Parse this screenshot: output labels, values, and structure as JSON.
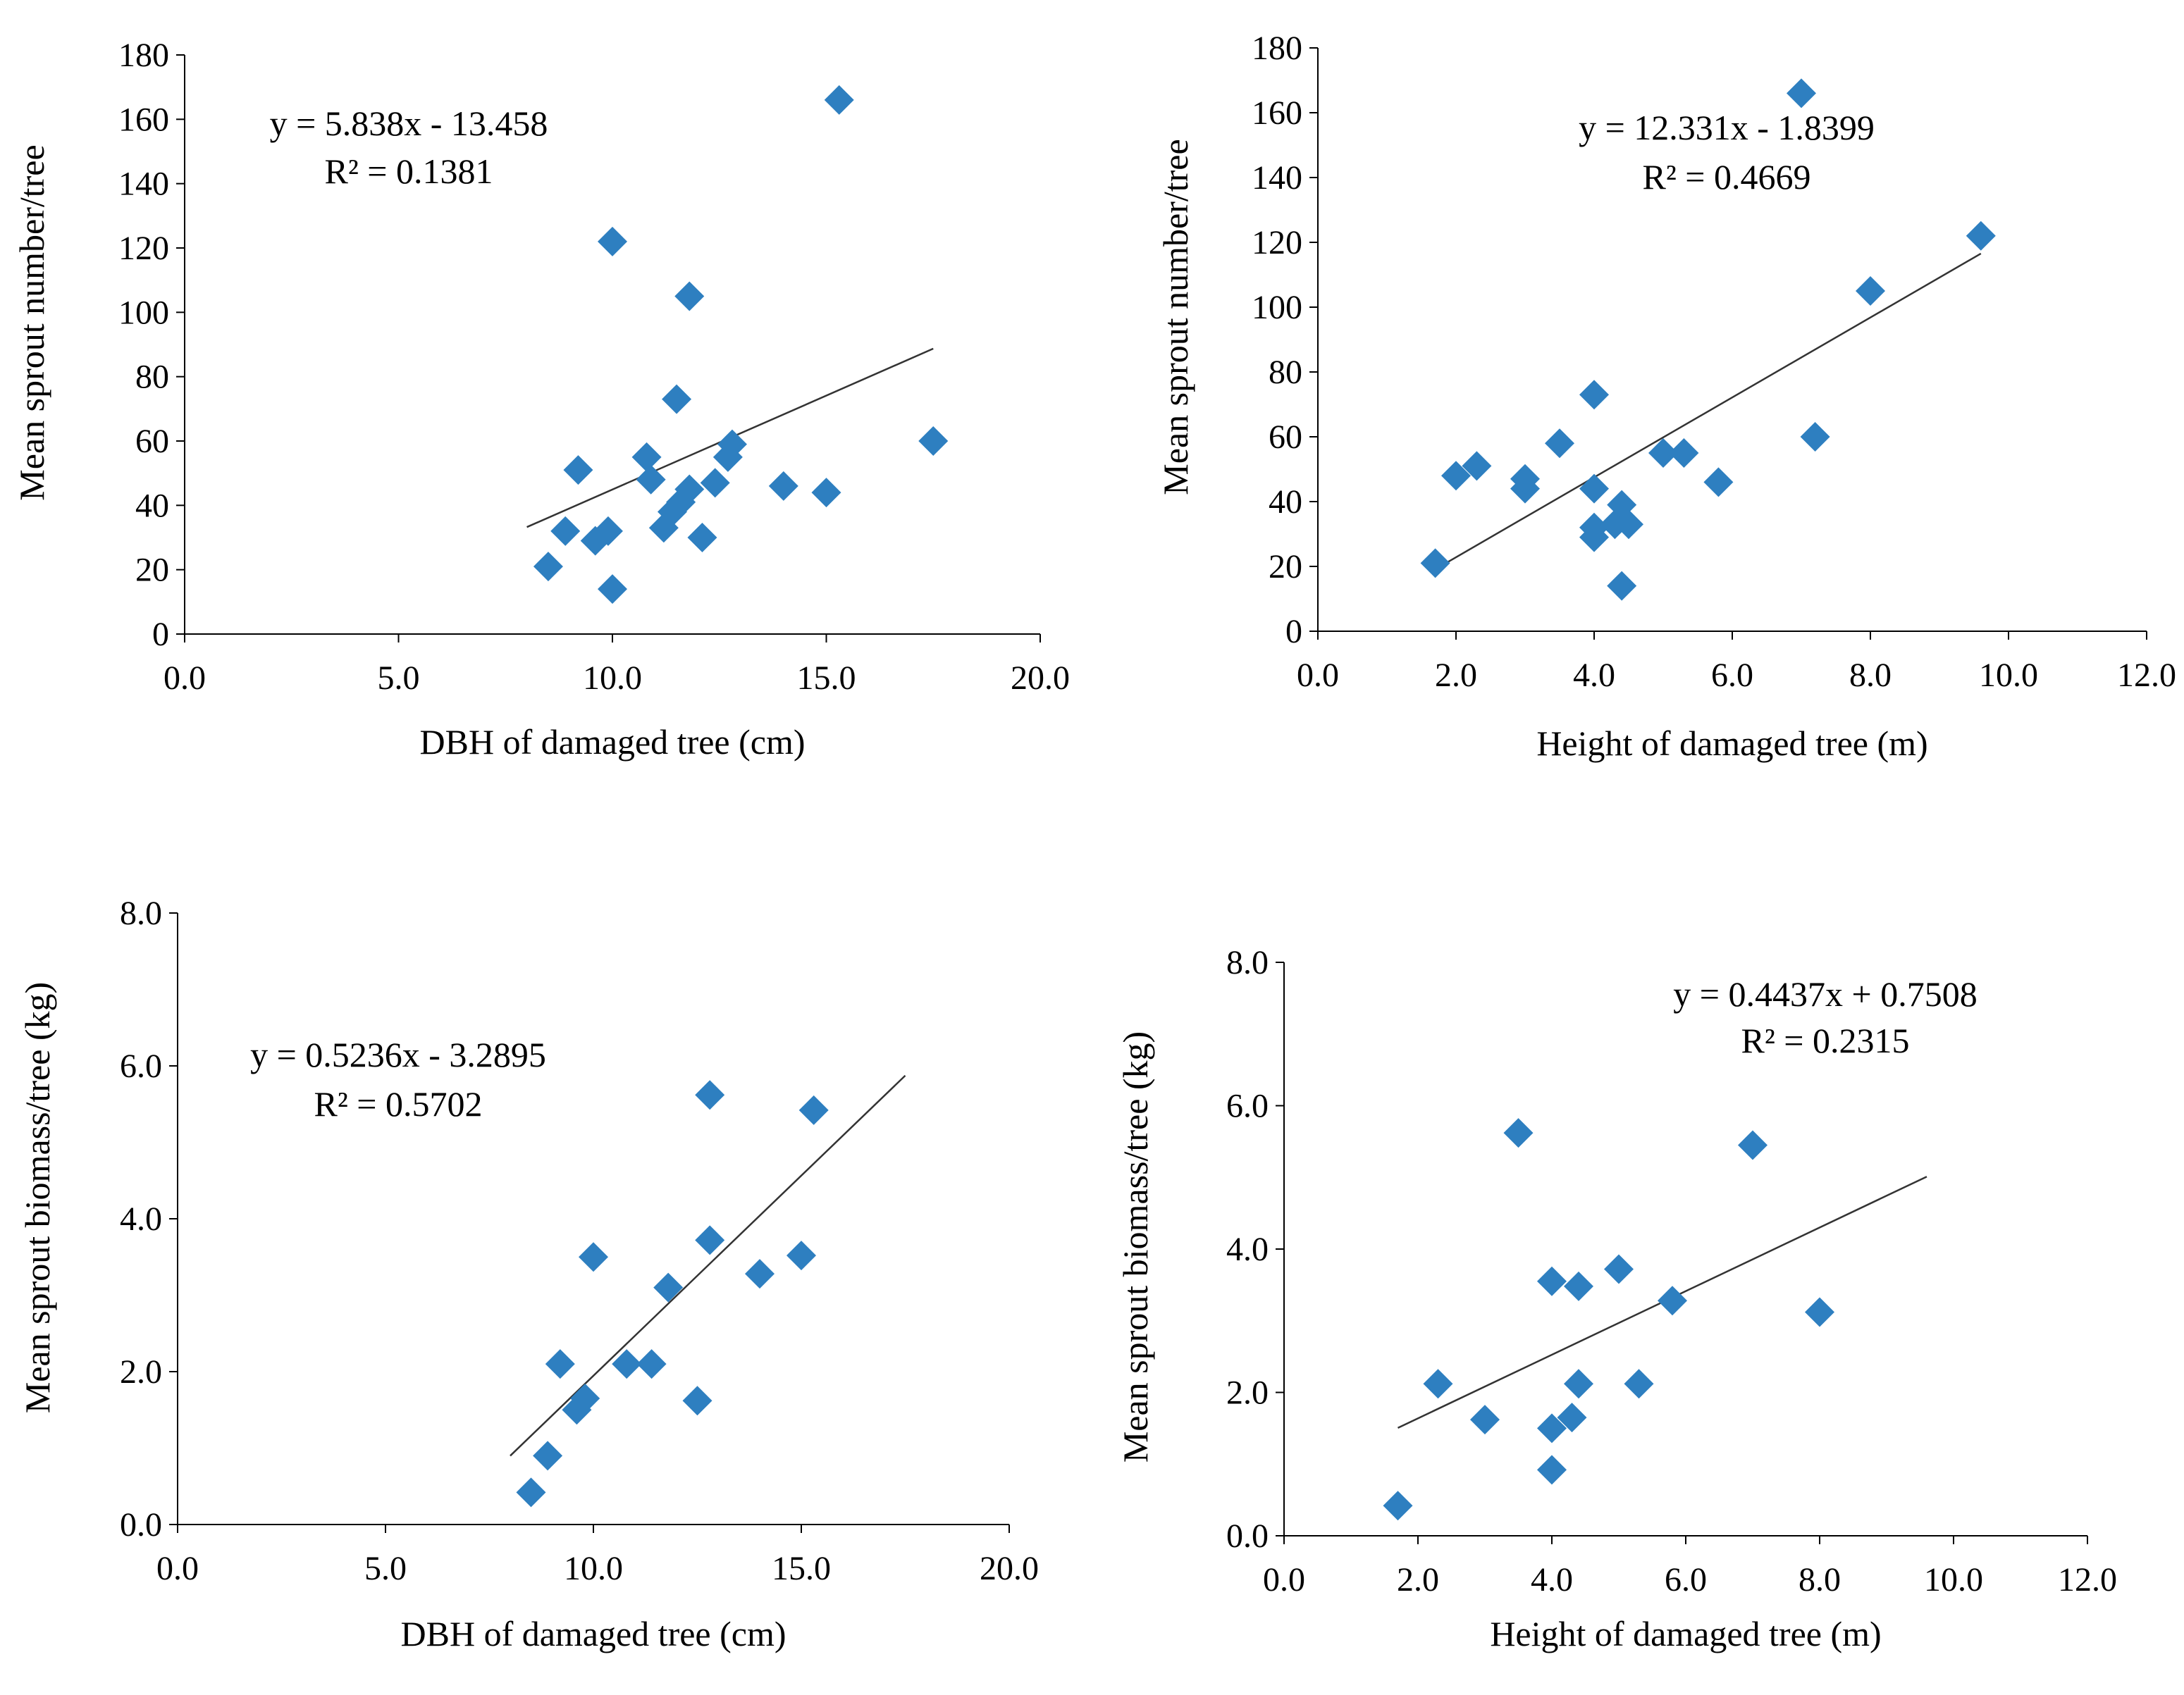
{
  "colors": {
    "marker": "#2E7FC0",
    "axis": "#000000",
    "trend": "#333333"
  },
  "chart_data": [
    {
      "type": "scatter",
      "name": "panel-a",
      "xlabel": "DBH of damaged tree (cm)",
      "ylabel": "Mean sprout number/tree",
      "xlim": [
        0,
        20
      ],
      "ylim": [
        0,
        180
      ],
      "xticks": [
        0,
        5,
        10,
        15,
        20
      ],
      "yticks": [
        0,
        20,
        40,
        60,
        80,
        100,
        120,
        140,
        160,
        180
      ],
      "xtick_labels": [
        "0.0",
        "5.0",
        "10.0",
        "15.0",
        "20.0"
      ],
      "ytick_labels": [
        "0",
        "20",
        "40",
        "60",
        "80",
        "100",
        "120",
        "140",
        "160",
        "180"
      ],
      "equation": "y = 5.838x - 13.458",
      "r2": "R² = 0.1381",
      "trendline": {
        "slope": 5.838,
        "intercept": -13.458,
        "x_range": [
          8.0,
          17.5
        ]
      },
      "points": [
        [
          8.5,
          21
        ],
        [
          8.9,
          32
        ],
        [
          9.2,
          51
        ],
        [
          9.6,
          29
        ],
        [
          9.9,
          32
        ],
        [
          10.0,
          14
        ],
        [
          10.0,
          122
        ],
        [
          10.8,
          55
        ],
        [
          10.9,
          48
        ],
        [
          11.2,
          33
        ],
        [
          11.4,
          38
        ],
        [
          11.5,
          73
        ],
        [
          11.6,
          41
        ],
        [
          11.8,
          45
        ],
        [
          11.8,
          105
        ],
        [
          12.1,
          30
        ],
        [
          12.4,
          47
        ],
        [
          12.7,
          55
        ],
        [
          12.8,
          59
        ],
        [
          14.0,
          46
        ],
        [
          15.0,
          44
        ],
        [
          15.3,
          166
        ],
        [
          17.5,
          60
        ]
      ]
    },
    {
      "type": "scatter",
      "name": "panel-b",
      "xlabel": "Height of damaged tree (m)",
      "ylabel": "Mean sprout number/tree",
      "xlim": [
        0,
        12
      ],
      "ylim": [
        0,
        180
      ],
      "xticks": [
        0,
        2,
        4,
        6,
        8,
        10,
        12
      ],
      "yticks": [
        0,
        20,
        40,
        60,
        80,
        100,
        120,
        140,
        160,
        180
      ],
      "xtick_labels": [
        "0.0",
        "2.0",
        "4.0",
        "6.0",
        "8.0",
        "10.0",
        "12.0"
      ],
      "ytick_labels": [
        "0",
        "20",
        "40",
        "60",
        "80",
        "100",
        "120",
        "140",
        "160",
        "180"
      ],
      "equation": "y = 12.331x - 1.8399",
      "r2": "R² = 0.4669",
      "trendline": {
        "slope": 12.331,
        "intercept": -1.8399,
        "x_range": [
          1.7,
          9.6
        ]
      },
      "points": [
        [
          1.7,
          21
        ],
        [
          2.0,
          48
        ],
        [
          2.3,
          51
        ],
        [
          3.0,
          44
        ],
        [
          3.0,
          47
        ],
        [
          3.5,
          58
        ],
        [
          4.0,
          73
        ],
        [
          4.0,
          44
        ],
        [
          4.0,
          32
        ],
        [
          4.0,
          29
        ],
        [
          4.3,
          33
        ],
        [
          4.4,
          39
        ],
        [
          4.4,
          14
        ],
        [
          4.5,
          33
        ],
        [
          5.0,
          55
        ],
        [
          5.3,
          55
        ],
        [
          5.8,
          46
        ],
        [
          7.0,
          166
        ],
        [
          7.2,
          60
        ],
        [
          8.0,
          105
        ],
        [
          9.6,
          122
        ]
      ]
    },
    {
      "type": "scatter",
      "name": "panel-c",
      "xlabel": "DBH of damaged tree (cm)",
      "ylabel": "Mean  sprout biomass/tree (kg)",
      "xlim": [
        0,
        20
      ],
      "ylim": [
        0,
        8
      ],
      "xticks": [
        0,
        5,
        10,
        15,
        20
      ],
      "yticks": [
        0,
        2,
        4,
        6,
        8
      ],
      "xtick_labels": [
        "0.0",
        "5.0",
        "10.0",
        "15.0",
        "20.0"
      ],
      "ytick_labels": [
        "0.0",
        "2.0",
        "4.0",
        "6.0",
        "8.0"
      ],
      "equation": "y = 0.5236x - 3.2895",
      "r2": "R² = 0.5702",
      "trendline": {
        "slope": 0.5236,
        "intercept": -3.2895,
        "x_range": [
          8.0,
          17.5
        ]
      },
      "points": [
        [
          8.5,
          0.42
        ],
        [
          8.9,
          0.9
        ],
        [
          9.2,
          2.1
        ],
        [
          9.6,
          1.5
        ],
        [
          9.8,
          1.65
        ],
        [
          10.0,
          3.5
        ],
        [
          10.8,
          2.1
        ],
        [
          11.4,
          2.1
        ],
        [
          11.8,
          3.1
        ],
        [
          12.5,
          1.62
        ],
        [
          12.8,
          5.62
        ],
        [
          12.8,
          3.72
        ],
        [
          14.0,
          3.28
        ],
        [
          15.0,
          3.52
        ],
        [
          15.3,
          5.42
        ]
      ]
    },
    {
      "type": "scatter",
      "name": "panel-d",
      "xlabel": "Height of damaged tree (m)",
      "ylabel": "Mean sprout biomass/tree (kg)",
      "xlim": [
        0,
        12
      ],
      "ylim": [
        0,
        8
      ],
      "xticks": [
        0,
        2,
        4,
        6,
        8,
        10,
        12
      ],
      "yticks": [
        0,
        2,
        4,
        6,
        8
      ],
      "xtick_labels": [
        "0.0",
        "2.0",
        "4.0",
        "6.0",
        "8.0",
        "10.0",
        "12.0"
      ],
      "ytick_labels": [
        "0.0",
        "2.0",
        "4.0",
        "6.0",
        "8.0"
      ],
      "equation": "y = 0.4437x + 0.7508",
      "r2": "R² = 0.2315",
      "trendline": {
        "slope": 0.4437,
        "intercept": 0.7508,
        "x_range": [
          1.7,
          9.6
        ]
      },
      "points": [
        [
          1.7,
          0.42
        ],
        [
          2.3,
          2.12
        ],
        [
          3.0,
          1.62
        ],
        [
          3.5,
          5.62
        ],
        [
          4.0,
          3.55
        ],
        [
          4.0,
          1.5
        ],
        [
          4.0,
          0.92
        ],
        [
          4.3,
          1.65
        ],
        [
          4.4,
          3.48
        ],
        [
          4.4,
          2.12
        ],
        [
          5.0,
          3.72
        ],
        [
          5.3,
          2.12
        ],
        [
          5.8,
          3.28
        ],
        [
          7.0,
          5.45
        ],
        [
          8.0,
          3.12
        ]
      ]
    }
  ]
}
